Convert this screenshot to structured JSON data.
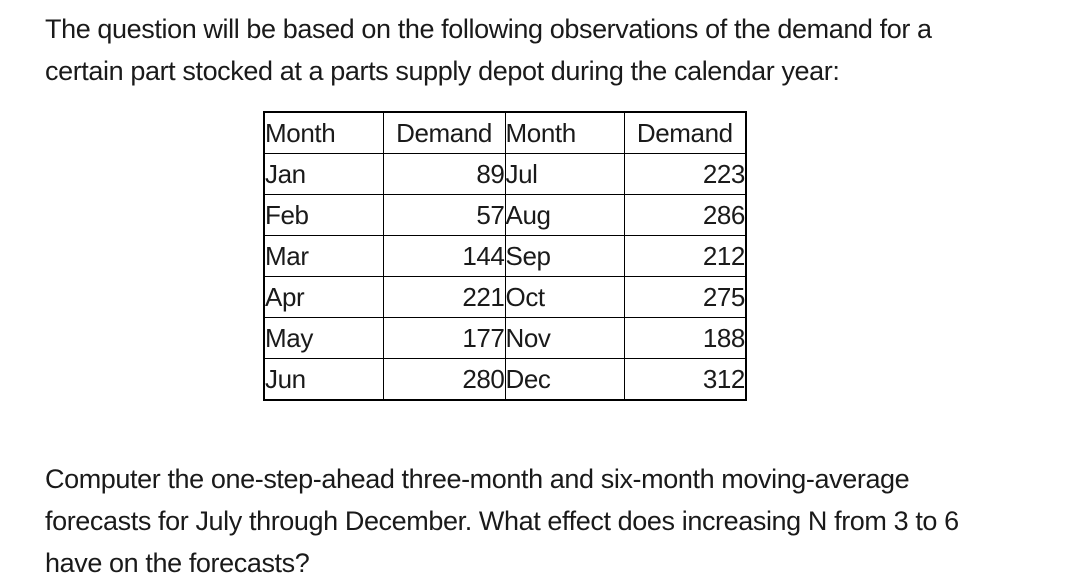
{
  "colors": {
    "background": "#ffffff",
    "text": "#1a1a1a",
    "table_border": "#000000"
  },
  "intro": {
    "lines": [
      "The question will be based on the following observations of the demand for a",
      "certain part stocked at a parts supply depot during the calendar year:"
    ]
  },
  "table": {
    "headers": [
      "Month",
      "Demand",
      "Month",
      "Demand"
    ],
    "rows": [
      [
        "Jan",
        89,
        "Jul",
        223
      ],
      [
        "Feb",
        57,
        "Aug",
        286
      ],
      [
        "Mar",
        144,
        "Sep",
        212
      ],
      [
        "Apr",
        221,
        "Oct",
        275
      ],
      [
        "May",
        177,
        "Nov",
        188
      ],
      [
        "Jun",
        280,
        "Dec",
        312
      ]
    ]
  },
  "question": {
    "lines": [
      "Computer the one-step-ahead three-month and six-month moving-average",
      "forecasts for July through December. What effect does increasing N from 3 to 6",
      "have on the forecasts?"
    ]
  }
}
